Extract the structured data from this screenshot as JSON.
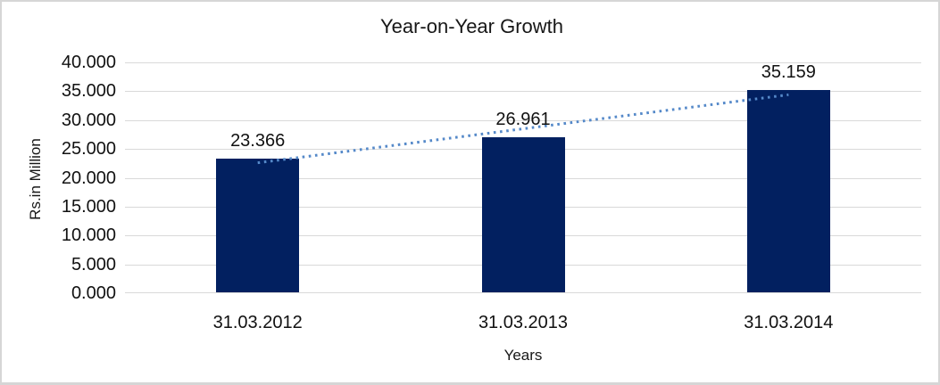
{
  "frame": {
    "border_color": "#d6d6d6",
    "background_color": "#ffffff"
  },
  "chart_data": {
    "type": "bar",
    "title": "Year-on-Year Growth",
    "xlabel": "Years",
    "ylabel": "Rs.in Million",
    "categories": [
      "31.03.2012",
      "31.03.2013",
      "31.03.2014"
    ],
    "values": [
      23.366,
      26.961,
      35.159
    ],
    "data_labels": [
      "23.366",
      "26.961",
      "35.159"
    ],
    "ylim": [
      0,
      40
    ],
    "ytick_step": 5,
    "ytick_labels": [
      "0.000",
      "5.000",
      "10.000",
      "15.000",
      "20.000",
      "25.000",
      "30.000",
      "35.000",
      "40.000"
    ],
    "grid": true,
    "legend": "none",
    "bar_color": "#022060",
    "gridline_color": "#d9d9d9",
    "text_color": "#111111",
    "trendline": {
      "type": "linear",
      "style": "dotted",
      "color": "#5589c9"
    }
  }
}
